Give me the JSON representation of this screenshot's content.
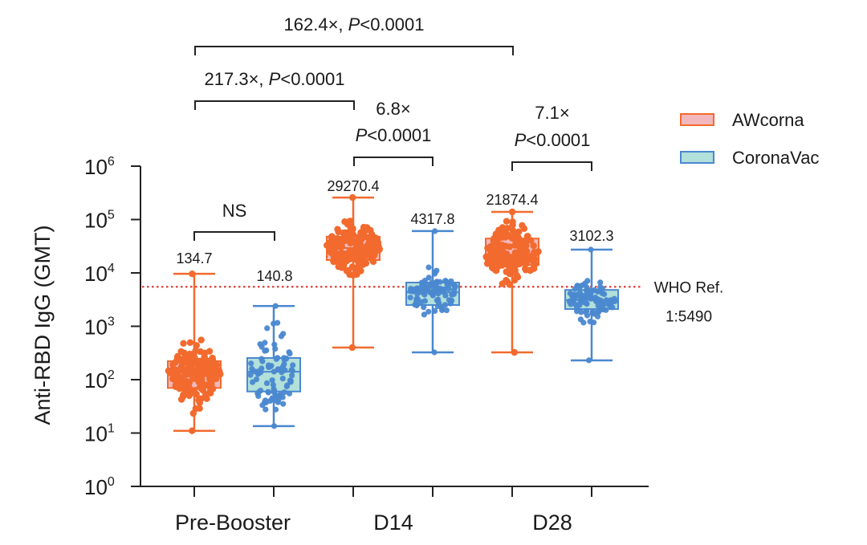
{
  "chart_data": {
    "type": "box",
    "title": "",
    "ylabel": "Anti-RBD IgG (GMT)",
    "xlabel": "",
    "yscale": "log10",
    "ylim": [
      1,
      1000000
    ],
    "y_ticks": [
      {
        "base": "10",
        "exp": "0",
        "value": 1
      },
      {
        "base": "10",
        "exp": "1",
        "value": 10
      },
      {
        "base": "10",
        "exp": "2",
        "value": 100
      },
      {
        "base": "10",
        "exp": "3",
        "value": 1000
      },
      {
        "base": "10",
        "exp": "4",
        "value": 10000
      },
      {
        "base": "10",
        "exp": "5",
        "value": 100000
      },
      {
        "base": "10",
        "exp": "6",
        "value": 1000000
      }
    ],
    "categories": [
      "Pre-Booster",
      "D14",
      "D28"
    ],
    "legend": {
      "placement": "top-right",
      "entries": [
        {
          "name": "AWcorna",
          "stroke": "#F26A2E",
          "fill": "#F2B8BE"
        },
        {
          "name": "CoronaVac",
          "stroke": "#4A88D0",
          "fill": "#B2E0DA"
        }
      ]
    },
    "series": [
      {
        "name": "AWcorna",
        "stroke": "#F26A2E",
        "fill": "#F2B8BE",
        "boxes": [
          {
            "category": "Pre-Booster",
            "gmt_label": "134.7",
            "median": 134.7,
            "q1": 70,
            "q3": 222,
            "min": 11,
            "max": 9600,
            "n_points": 180
          },
          {
            "category": "D14",
            "gmt_label": "29270.4",
            "median": 29270.4,
            "q1": 17400,
            "q3": 47700,
            "min": 400,
            "max": 258000,
            "n_points": 180
          },
          {
            "category": "D28",
            "gmt_label": "21874.4",
            "median": 21874.4,
            "q1": 14100,
            "q3": 44000,
            "min": 325,
            "max": 139000,
            "n_points": 180
          }
        ]
      },
      {
        "name": "CoronaVac",
        "stroke": "#4A88D0",
        "fill": "#B2E0DA",
        "boxes": [
          {
            "category": "Pre-Booster",
            "gmt_label": "140.8",
            "median": 140.8,
            "q1": 60,
            "q3": 255,
            "min": 13.5,
            "max": 2400,
            "n_points": 90
          },
          {
            "category": "D14",
            "gmt_label": "4317.8",
            "median": 4317.8,
            "q1": 2500,
            "q3": 6600,
            "min": 325,
            "max": 60700,
            "n_points": 90
          },
          {
            "category": "D28",
            "gmt_label": "3102.3",
            "median": 3102.3,
            "q1": 2100,
            "q3": 4800,
            "min": 230,
            "max": 27300,
            "n_points": 90
          }
        ]
      }
    ],
    "reference_line": {
      "value": 5490,
      "label_line1": "WHO Ref.",
      "label_line2": "1:5490",
      "color": "#D9342B",
      "style": "dotted"
    },
    "comparisons": [
      {
        "from_category": "Pre-Booster",
        "from_series": "AWcorna",
        "to_category": "D28",
        "to_series": "AWcorna",
        "fold": "162.4×, ",
        "p": "P",
        "p_rest": "<0.0001",
        "layout": "single"
      },
      {
        "from_category": "Pre-Booster",
        "from_series": "AWcorna",
        "to_category": "D14",
        "to_series": "AWcorna",
        "fold": "217.3×, ",
        "p": "P",
        "p_rest": "<0.0001",
        "layout": "single"
      },
      {
        "from_category": "D14",
        "from_series": "AWcorna",
        "to_category": "D14",
        "to_series": "CoronaVac",
        "fold": "6.8×",
        "p": "P",
        "p_rest": "<0.0001",
        "layout": "stacked"
      },
      {
        "from_category": "D28",
        "from_series": "AWcorna",
        "to_category": "D28",
        "to_series": "CoronaVac",
        "fold": "7.1×",
        "p": "P",
        "p_rest": "<0.0001",
        "layout": "stacked"
      },
      {
        "from_category": "Pre-Booster",
        "from_series": "AWcorna",
        "to_category": "Pre-Booster",
        "to_series": "CoronaVac",
        "fold": "NS",
        "p": "",
        "p_rest": "",
        "layout": "ns"
      }
    ]
  }
}
